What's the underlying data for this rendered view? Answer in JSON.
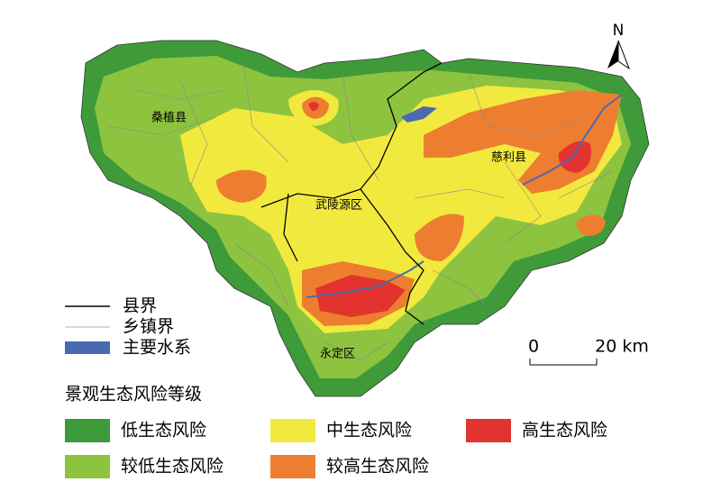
{
  "map": {
    "north": "N",
    "labels": [
      "桑植县",
      "慈利县",
      "武陵源区",
      "永定区"
    ],
    "legend": {
      "lines": [
        {
          "label": "县界",
          "color": "#000000"
        },
        {
          "label": "乡镇界",
          "color": "#999999"
        },
        {
          "label": "主要水系",
          "color": "#4a6ab0"
        }
      ],
      "title": "景观生态风险等级",
      "classes": [
        {
          "label": "低生态风险",
          "color": "#3f9b3a"
        },
        {
          "label": "较低生态风险",
          "color": "#8dc33f"
        },
        {
          "label": "中生态风险",
          "color": "#f2e93e"
        },
        {
          "label": "较高生态风险",
          "color": "#ee7e2f"
        },
        {
          "label": "高生态风险",
          "color": "#e2332f"
        }
      ]
    },
    "scale": {
      "ticks": [
        "0",
        "20 km"
      ]
    }
  }
}
